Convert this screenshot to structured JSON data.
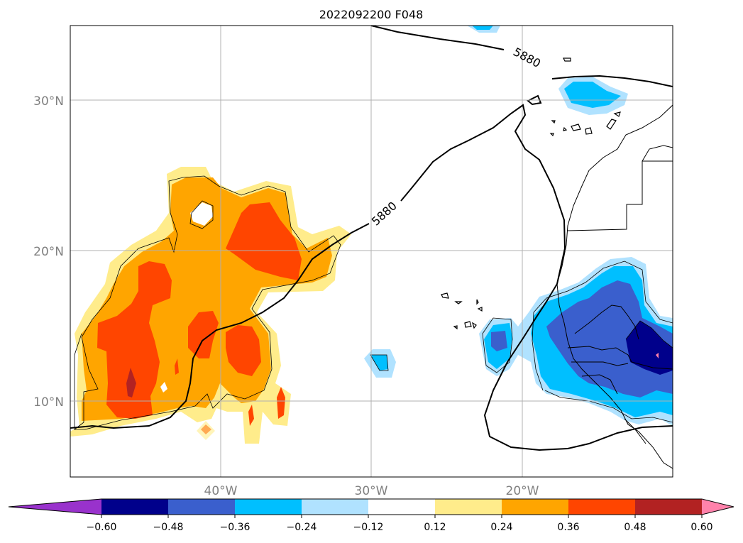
{
  "title": "2022092200 F048",
  "map": {
    "lat_labels": [
      "30°N",
      "20°N",
      "10°N"
    ],
    "lon_labels": [
      "40°W",
      "30°W",
      "20°W"
    ],
    "contour_label": "5880",
    "contour_label_2": "5880"
  },
  "colorbar": {
    "ticks": [
      "−0.60",
      "−0.48",
      "−0.36",
      "−0.24",
      "−0.12",
      "0.12",
      "0.24",
      "0.36",
      "0.48",
      "0.60"
    ],
    "colors": [
      "#9932cc",
      "#00008b",
      "#3a5fcd",
      "#00bfff",
      "#b0e2ff",
      "#ffffff",
      "#ffec8b",
      "#ffa500",
      "#ff4500",
      "#b22222",
      "#ff82ab"
    ]
  }
}
